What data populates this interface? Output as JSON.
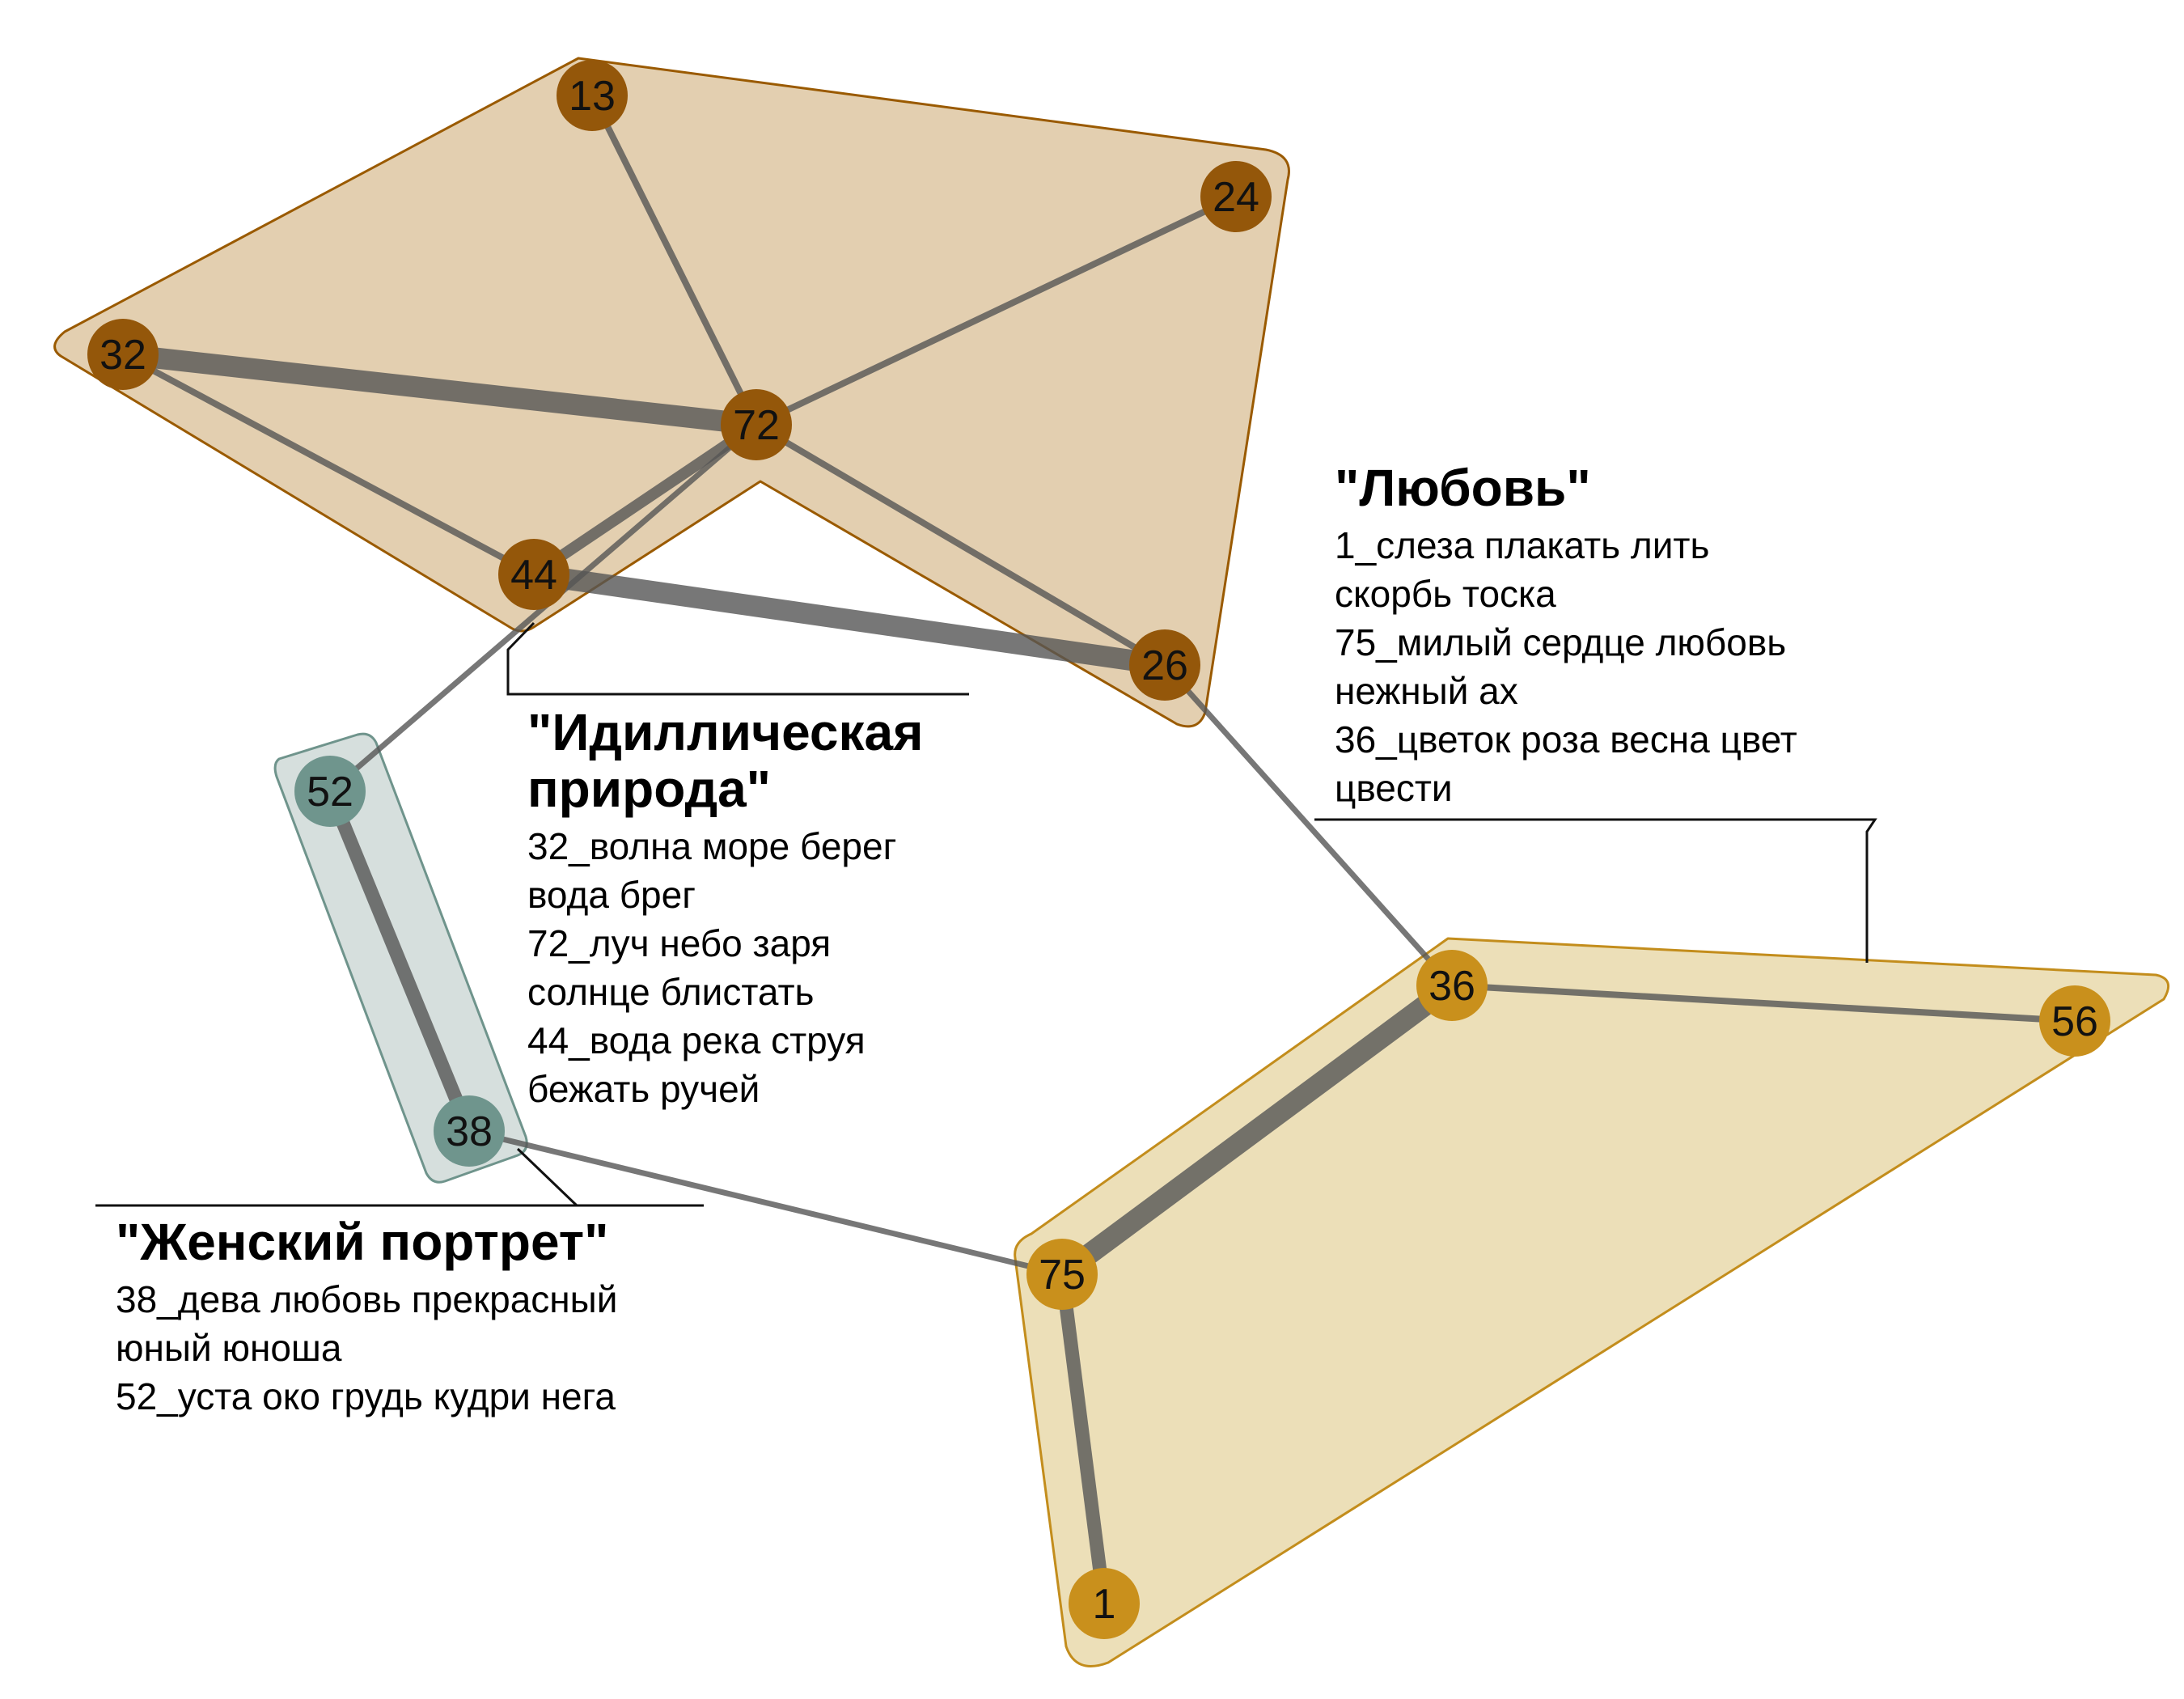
{
  "colors": {
    "background": "#ffffff",
    "edge": "#555555",
    "cluster_nature_fill": "#e3cfb0",
    "cluster_nature_stroke": "#9a5a00",
    "cluster_nature_node": "#94570a",
    "cluster_love_fill": "#ecdfb8",
    "cluster_love_stroke": "#c38d1c",
    "cluster_love_node": "#c9901c",
    "cluster_portrait_fill": "#d6dfdd",
    "cluster_portrait_stroke": "#6f948c",
    "cluster_portrait_node": "#6f958d"
  },
  "nodes": [
    {
      "id": "13",
      "label": "13",
      "cluster": "nature"
    },
    {
      "id": "24",
      "label": "24",
      "cluster": "nature"
    },
    {
      "id": "32",
      "label": "32",
      "cluster": "nature"
    },
    {
      "id": "72",
      "label": "72",
      "cluster": "nature"
    },
    {
      "id": "44",
      "label": "44",
      "cluster": "nature"
    },
    {
      "id": "26",
      "label": "26",
      "cluster": "nature"
    },
    {
      "id": "52",
      "label": "52",
      "cluster": "portrait"
    },
    {
      "id": "38",
      "label": "38",
      "cluster": "portrait"
    },
    {
      "id": "36",
      "label": "36",
      "cluster": "love"
    },
    {
      "id": "56",
      "label": "56",
      "cluster": "love"
    },
    {
      "id": "75",
      "label": "75",
      "cluster": "love"
    },
    {
      "id": "1",
      "label": "1",
      "cluster": "love"
    }
  ],
  "edges": [
    {
      "source": "32",
      "target": "72",
      "weight": 5
    },
    {
      "source": "44",
      "target": "26",
      "weight": 5
    },
    {
      "source": "36",
      "target": "75",
      "weight": 5
    },
    {
      "source": "52",
      "target": "38",
      "weight": 4
    },
    {
      "source": "75",
      "target": "1",
      "weight": 4
    },
    {
      "source": "44",
      "target": "72",
      "weight": 3
    },
    {
      "source": "13",
      "target": "72",
      "weight": 2
    },
    {
      "source": "24",
      "target": "72",
      "weight": 2
    },
    {
      "source": "32",
      "target": "44",
      "weight": 2
    },
    {
      "source": "72",
      "target": "26",
      "weight": 2
    },
    {
      "source": "72",
      "target": "52",
      "weight": 1
    },
    {
      "source": "26",
      "target": "36",
      "weight": 1
    },
    {
      "source": "36",
      "target": "56",
      "weight": 2
    },
    {
      "source": "38",
      "target": "75",
      "weight": 1
    }
  ],
  "clusters": {
    "nature": {
      "title": "\"Идиллическая природа\"",
      "title_lines": [
        "\"Идиллическая",
        "природа\""
      ],
      "lines": [
        "32_волна море берег",
        "вода брег",
        "72_луч небо заря",
        "солнце блистать",
        "44_вода река струя",
        "бежать ручей"
      ]
    },
    "love": {
      "title": "\"Любовь\"",
      "title_lines": [
        "\"Любовь\""
      ],
      "lines": [
        "1_слеза плакать лить",
        "скорбь тоска",
        "75_милый сердце любовь",
        "нежный ах",
        "36_цветок роза весна цвет",
        "цвести"
      ]
    },
    "portrait": {
      "title": "\"Женский портрет\"",
      "title_lines": [
        "\"Женский портрет\""
      ],
      "lines": [
        "38_дева любовь прекрасный",
        "юный юноша",
        "52_уста око грудь кудри нега"
      ]
    }
  }
}
